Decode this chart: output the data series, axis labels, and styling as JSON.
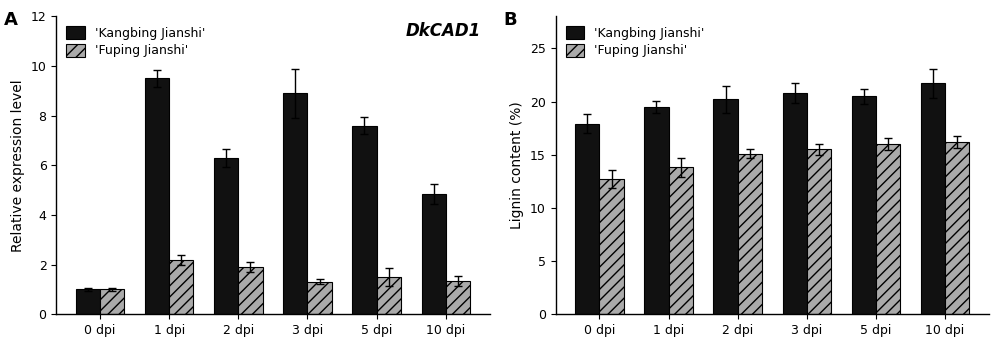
{
  "panel_A": {
    "title": "A",
    "gene_label": "DkCAD1",
    "ylabel": "Relative expression level",
    "categories": [
      "0 dpi",
      "1 dpi",
      "2 dpi",
      "3 dpi",
      "5 dpi",
      "10 dpi"
    ],
    "kangbing_values": [
      1.0,
      9.5,
      6.3,
      8.9,
      7.6,
      4.85
    ],
    "fuping_values": [
      1.0,
      2.2,
      1.9,
      1.3,
      1.5,
      1.35
    ],
    "kangbing_errors": [
      0.07,
      0.35,
      0.35,
      1.0,
      0.35,
      0.4
    ],
    "fuping_errors": [
      0.07,
      0.2,
      0.2,
      0.1,
      0.35,
      0.2
    ],
    "ylim": [
      0,
      12
    ],
    "yticks": [
      0,
      2,
      4,
      6,
      8,
      10,
      12
    ]
  },
  "panel_B": {
    "title": "B",
    "gene_label": "",
    "ylabel": "Lignin content (%)",
    "categories": [
      "0 dpi",
      "1 dpi",
      "2 dpi",
      "3 dpi",
      "5 dpi",
      "10 dpi"
    ],
    "kangbing_values": [
      17.9,
      19.5,
      20.2,
      20.8,
      20.5,
      21.7
    ],
    "fuping_values": [
      12.7,
      13.8,
      15.1,
      15.5,
      16.0,
      16.2
    ],
    "kangbing_errors": [
      0.9,
      0.55,
      1.3,
      0.9,
      0.7,
      1.4
    ],
    "fuping_errors": [
      0.85,
      0.9,
      0.4,
      0.5,
      0.6,
      0.55
    ],
    "ylim": [
      0,
      28
    ],
    "yticks": [
      0,
      5,
      10,
      15,
      20,
      25
    ]
  },
  "kangbing_color": "#111111",
  "fuping_color": "#aaaaaa",
  "bar_width": 0.35,
  "legend_kangbing": "'Kangbing Jianshi'",
  "legend_fuping": "'Fuping Jianshi'",
  "hatch": "///",
  "background_color": "#ffffff",
  "fontsize_label": 10,
  "fontsize_tick": 9,
  "fontsize_legend": 9,
  "fontsize_panel": 13,
  "fontsize_gene": 12
}
